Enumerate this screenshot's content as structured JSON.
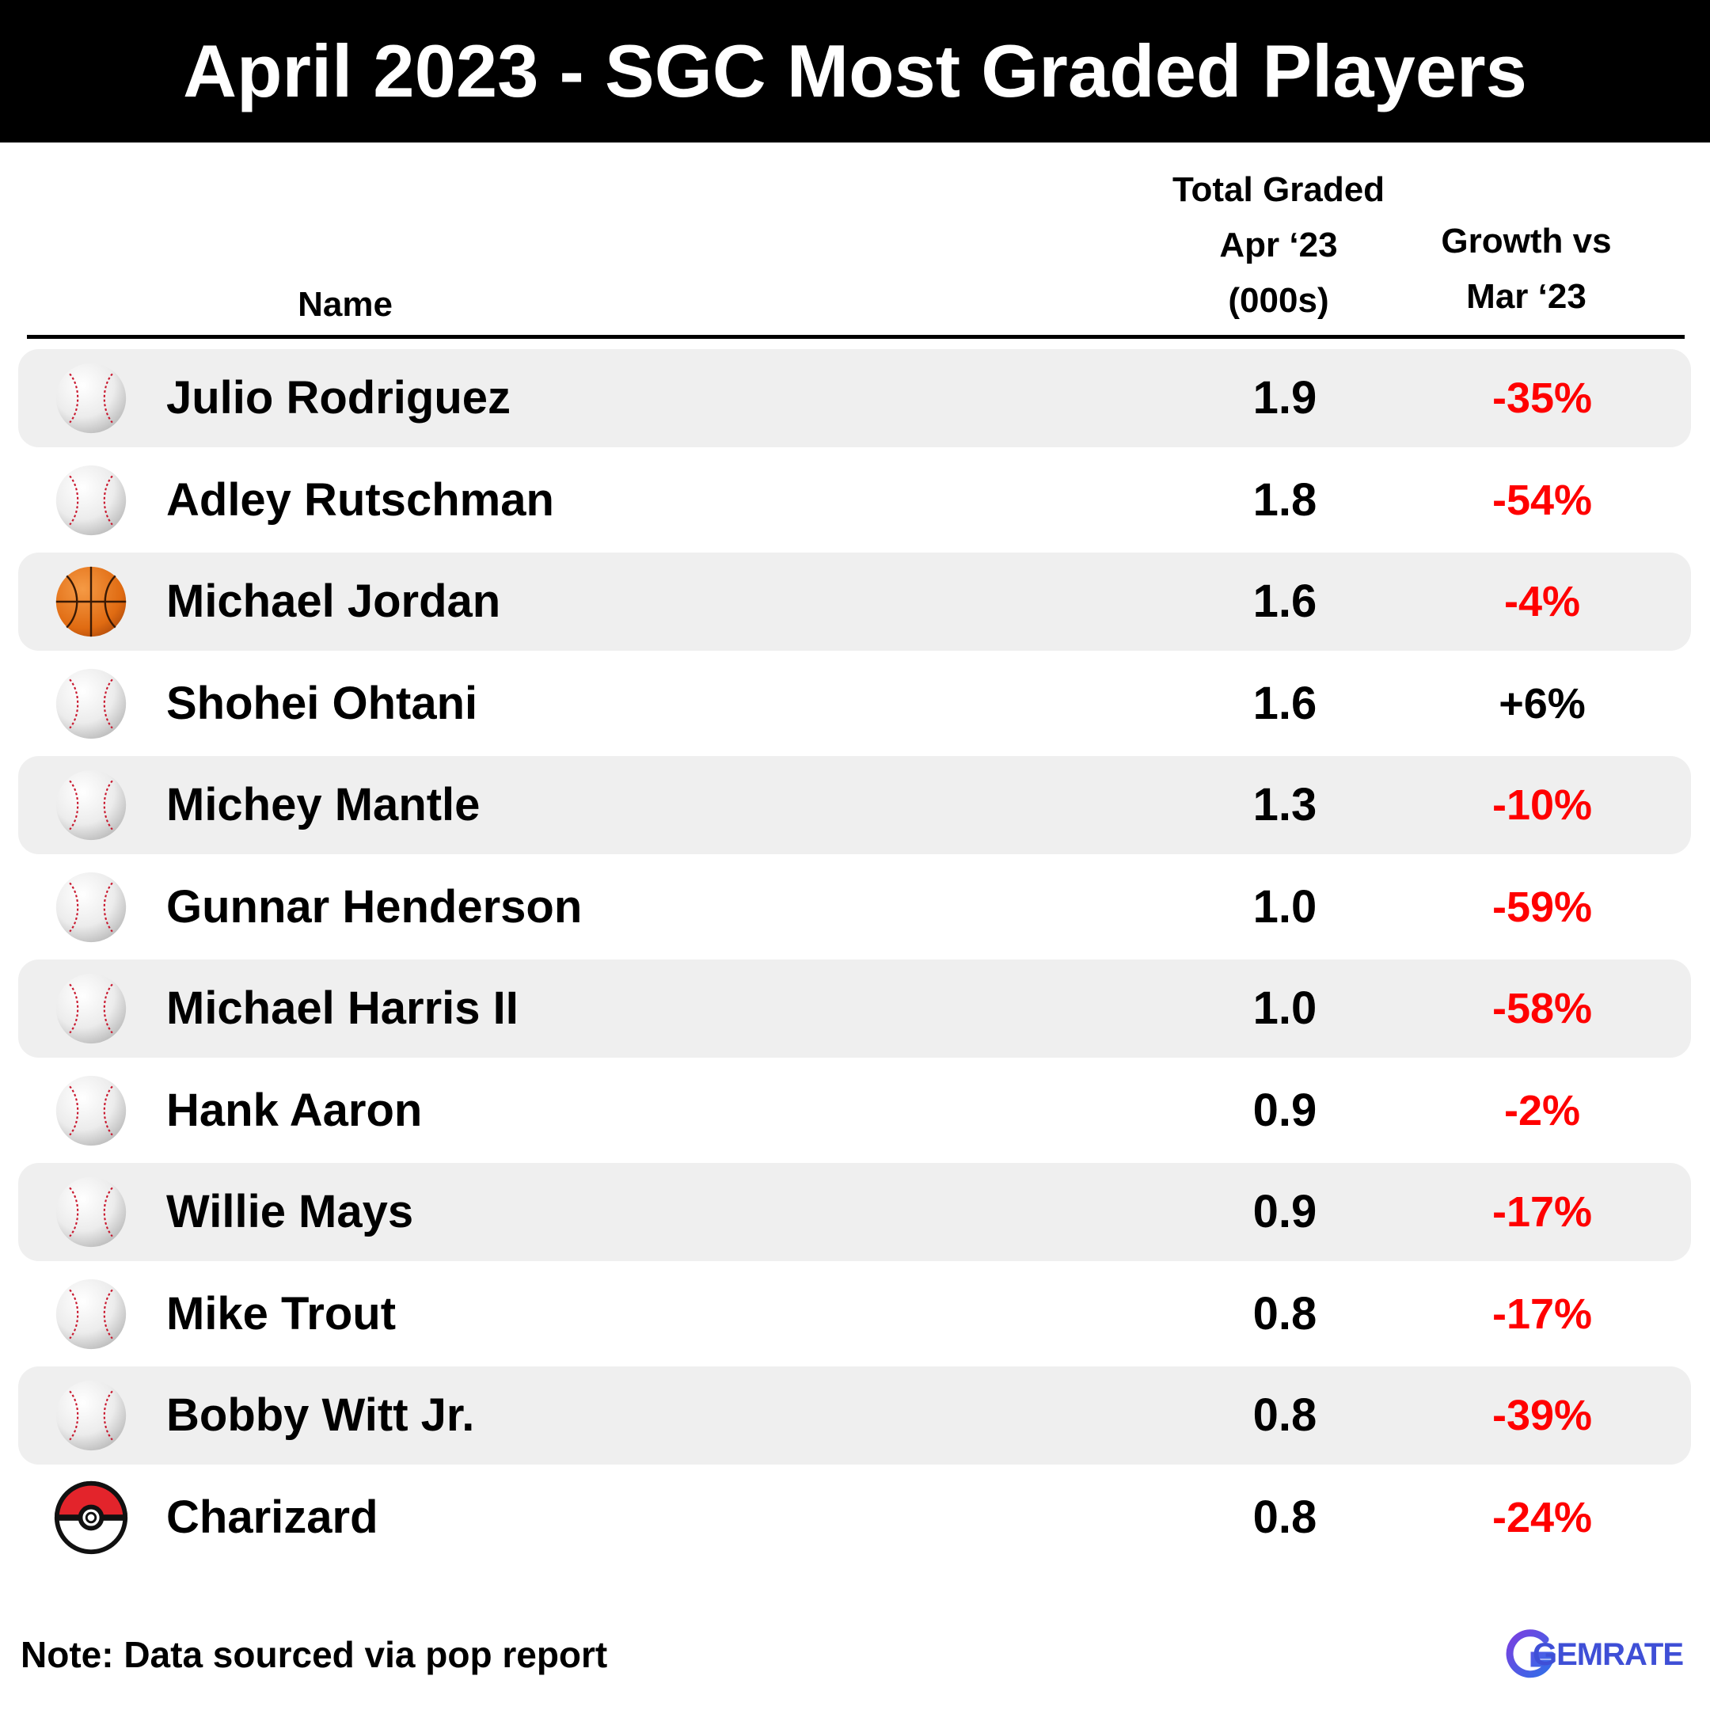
{
  "title": "April 2023 - SGC Most Graded Players",
  "header": {
    "name": "Name",
    "total_lines": [
      "Total Graded",
      "Apr ‘23",
      "(000s)"
    ],
    "growth_lines": [
      "Growth vs",
      "Mar ‘23"
    ]
  },
  "colors": {
    "negative": "#ff0000",
    "positive": "#000000",
    "row_shade": "#efefef",
    "title_bg": "#000000"
  },
  "chart_data": {
    "type": "table",
    "title": "April 2023 - SGC Most Graded Players",
    "columns": [
      "Name",
      "Total Graded Apr ‘23 (000s)",
      "Growth vs Mar ‘23"
    ],
    "rows": [
      {
        "icon": "baseball-icon",
        "name": "Julio Rodriguez",
        "total": "1.9",
        "growth": "-35%"
      },
      {
        "icon": "baseball-icon",
        "name": "Adley Rutschman",
        "total": "1.8",
        "growth": "-54%"
      },
      {
        "icon": "basketball-icon",
        "name": "Michael Jordan",
        "total": "1.6",
        "growth": "-4%"
      },
      {
        "icon": "baseball-icon",
        "name": "Shohei Ohtani",
        "total": "1.6",
        "growth": "+6%"
      },
      {
        "icon": "baseball-icon",
        "name": "Michey Mantle",
        "total": "1.3",
        "growth": "-10%"
      },
      {
        "icon": "baseball-icon",
        "name": "Gunnar Henderson",
        "total": "1.0",
        "growth": "-59%"
      },
      {
        "icon": "baseball-icon",
        "name": "Michael Harris II",
        "total": "1.0",
        "growth": "-58%"
      },
      {
        "icon": "baseball-icon",
        "name": "Hank Aaron",
        "total": "0.9",
        "growth": "-2%"
      },
      {
        "icon": "baseball-icon",
        "name": "Willie Mays",
        "total": "0.9",
        "growth": "-17%"
      },
      {
        "icon": "baseball-icon",
        "name": "Mike Trout",
        "total": "0.8",
        "growth": "-17%"
      },
      {
        "icon": "baseball-icon",
        "name": "Bobby Witt Jr.",
        "total": "0.8",
        "growth": "-39%"
      },
      {
        "icon": "pokeball-icon",
        "name": "Charizard",
        "total": "0.8",
        "growth": "-24%"
      }
    ]
  },
  "footer": {
    "note": "Note: Data sourced via pop report",
    "logo_text": "GEMRATE"
  }
}
